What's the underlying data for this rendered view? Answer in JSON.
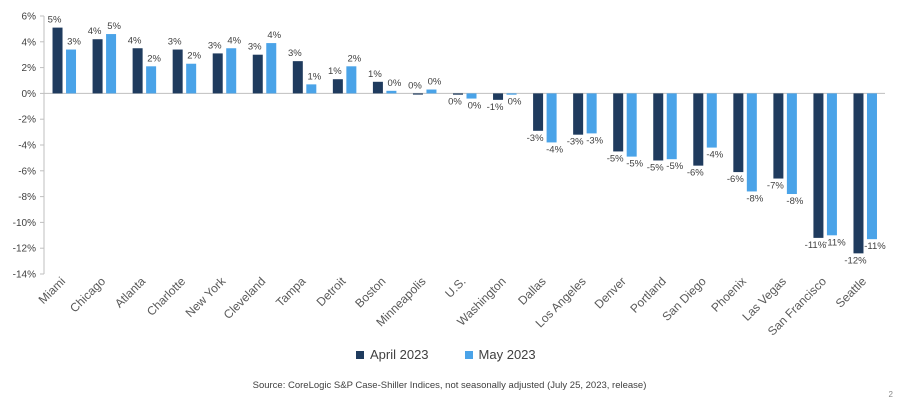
{
  "chart_data": {
    "type": "bar",
    "categories": [
      "Miami",
      "Chicago",
      "Atlanta",
      "Charlotte",
      "New York",
      "Cleveland",
      "Tampa",
      "Detroit",
      "Boston",
      "Minneapolis",
      "U.S.",
      "Washington",
      "Dallas",
      "Los Angeles",
      "Denver",
      "Portland",
      "San Diego",
      "Phoenix",
      "Las Vegas",
      "San Francisco",
      "Seattle"
    ],
    "series": [
      {
        "name": "April 2023",
        "color": "#1f3b5e",
        "values": [
          5.1,
          4.2,
          3.5,
          3.4,
          3.1,
          3.0,
          2.5,
          1.1,
          0.9,
          0.0,
          -0.1,
          -0.5,
          -2.9,
          -3.2,
          -4.5,
          -5.2,
          -5.6,
          -6.1,
          -6.6,
          -11.2,
          -12.4
        ],
        "labels": [
          "5%",
          "4%",
          "4%",
          "3%",
          "3%",
          "3%",
          "3%",
          "1%",
          "1%",
          "0%",
          "0%",
          "-1%",
          "-3%",
          "-3%",
          "-5%",
          "-5%",
          "-6%",
          "-6%",
          "-7%",
          "-11%",
          "-12%"
        ]
      },
      {
        "name": "May 2023",
        "color": "#4aa3e8",
        "values": [
          3.4,
          4.6,
          2.1,
          2.3,
          3.5,
          3.9,
          0.7,
          2.1,
          0.2,
          0.3,
          -0.4,
          -0.1,
          -3.8,
          -3.1,
          -4.9,
          -5.1,
          -4.2,
          -7.6,
          -7.8,
          -11.0,
          -11.3
        ],
        "labels": [
          "3%",
          "5%",
          "2%",
          "2%",
          "4%",
          "4%",
          "1%",
          "2%",
          "0%",
          "0%",
          "0%",
          "0%",
          "-4%",
          "-3%",
          "-5%",
          "-5%",
          "-4%",
          "-8%",
          "-8%",
          "-11%",
          "-11%"
        ]
      }
    ],
    "ylim": [
      -14,
      6
    ],
    "yticks": [
      6,
      4,
      2,
      0,
      -2,
      -4,
      -6,
      -8,
      -10,
      -12,
      -14
    ],
    "ytick_labels": [
      "6%",
      "4%",
      "2%",
      "0%",
      "-2%",
      "-4%",
      "-6%",
      "-8%",
      "-10%",
      "-12%",
      "-14%"
    ],
    "grid": false,
    "legend": "bottom",
    "title": "",
    "xlabel": "",
    "ylabel": ""
  },
  "source": "Source: CoreLogic S&P Case-Shiller Indices, not seasonally adjusted (July 25, 2023, release)",
  "page_number": "2"
}
